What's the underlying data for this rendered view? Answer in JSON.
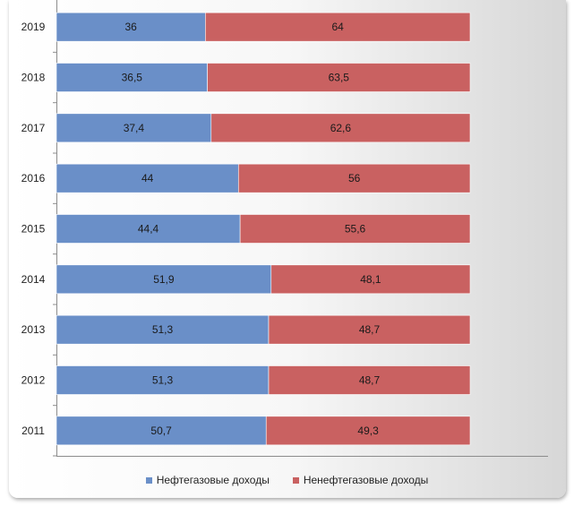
{
  "chart_data": {
    "type": "bar",
    "orientation": "horizontal",
    "stacked": true,
    "categories": [
      "2019",
      "2018",
      "2017",
      "2016",
      "2015",
      "2014",
      "2013",
      "2012",
      "2011"
    ],
    "series": [
      {
        "name": "Нефтегазовые доходы",
        "color": "#6a8fc8",
        "values": [
          36,
          36.5,
          37.4,
          44,
          44.4,
          51.9,
          51.3,
          51.3,
          50.7
        ],
        "labels": [
          "36",
          "36,5",
          "37,4",
          "44",
          "44,4",
          "51,9",
          "51,3",
          "51,3",
          "50,7"
        ]
      },
      {
        "name": "Ненефтегазовые доходы",
        "color": "#c96161",
        "values": [
          64,
          63.5,
          62.6,
          56,
          55.6,
          48.1,
          48.7,
          48.7,
          49.3
        ],
        "labels": [
          "64",
          "63,5",
          "62,6",
          "56",
          "55,6",
          "48,1",
          "48,7",
          "48,7",
          "49,3"
        ]
      }
    ],
    "xlim": [
      0,
      100
    ],
    "grid": false,
    "legend_position": "bottom"
  }
}
